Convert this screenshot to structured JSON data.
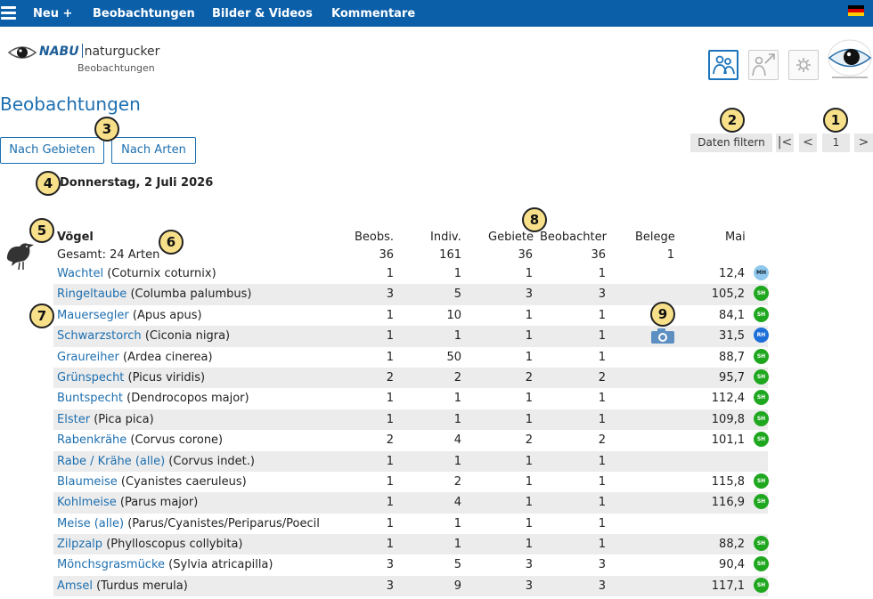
{
  "nav": {
    "items": [
      "Neu +",
      "Beobachtungen",
      "Bilder & Videos",
      "Kommentare"
    ]
  },
  "logo": {
    "brand": "NABU",
    "name": "naturgucker",
    "sub": "Beobachtungen"
  },
  "page": {
    "title": "Beobachtungen",
    "date": "Donnerstag, 2 Juli 2026"
  },
  "buttons": {
    "by_area": "Nach Gebieten",
    "by_species": "Nach Arten",
    "filter": "Daten filtern"
  },
  "pagination": {
    "first": "|<",
    "prev": "<",
    "page": "1",
    "next": ">"
  },
  "badges": [
    "1",
    "2",
    "3",
    "4",
    "5",
    "6",
    "7",
    "8",
    "9"
  ],
  "table": {
    "group": "Vögel",
    "total_label": "Gesamt: 24 Arten",
    "headers": {
      "beobs": "Beobs.",
      "indiv": "Indiv.",
      "gebiete": "Gebiete",
      "beobachter": "Beobachter",
      "belege": "Belege",
      "mai": "Mai"
    },
    "totals": {
      "beobs": "36",
      "indiv": "161",
      "gebiete": "36",
      "beobachter": "36",
      "belege": "1"
    },
    "rows": [
      {
        "name": "Wachtel",
        "latin": "(Coturnix coturnix)",
        "beobs": "1",
        "indiv": "1",
        "gebiete": "1",
        "beobachter": "1",
        "mai": "12,4",
        "tag": "MH",
        "tag_type": "mh"
      },
      {
        "name": "Ringeltaube",
        "latin": "(Columba palumbus)",
        "beobs": "3",
        "indiv": "5",
        "gebiete": "3",
        "beobachter": "3",
        "mai": "105,2",
        "tag": "SH",
        "tag_type": "sh"
      },
      {
        "name": "Mauersegler",
        "latin": "(Apus apus)",
        "beobs": "1",
        "indiv": "10",
        "gebiete": "1",
        "beobachter": "1",
        "mai": "84,1",
        "tag": "SH",
        "tag_type": "sh"
      },
      {
        "name": "Schwarzstorch",
        "latin": "(Ciconia nigra)",
        "beobs": "1",
        "indiv": "1",
        "gebiete": "1",
        "beobachter": "1",
        "mai": "31,5",
        "tag": "RH",
        "tag_type": "rh",
        "photo": true
      },
      {
        "name": "Graureiher",
        "latin": "(Ardea cinerea)",
        "beobs": "1",
        "indiv": "50",
        "gebiete": "1",
        "beobachter": "1",
        "mai": "88,7",
        "tag": "SH",
        "tag_type": "sh"
      },
      {
        "name": "Grünspecht",
        "latin": "(Picus viridis)",
        "beobs": "2",
        "indiv": "2",
        "gebiete": "2",
        "beobachter": "2",
        "mai": "95,7",
        "tag": "SH",
        "tag_type": "sh"
      },
      {
        "name": "Buntspecht",
        "latin": "(Dendrocopos major)",
        "beobs": "1",
        "indiv": "1",
        "gebiete": "1",
        "beobachter": "1",
        "mai": "112,4",
        "tag": "SH",
        "tag_type": "sh"
      },
      {
        "name": "Elster",
        "latin": "(Pica pica)",
        "beobs": "1",
        "indiv": "1",
        "gebiete": "1",
        "beobachter": "1",
        "mai": "109,8",
        "tag": "SH",
        "tag_type": "sh"
      },
      {
        "name": "Rabenkrähe",
        "latin": "(Corvus corone)",
        "beobs": "2",
        "indiv": "4",
        "gebiete": "2",
        "beobachter": "2",
        "mai": "101,1",
        "tag": "SH",
        "tag_type": "sh"
      },
      {
        "name": "Rabe / Krähe (alle)",
        "latin": "(Corvus indet.)",
        "beobs": "1",
        "indiv": "1",
        "gebiete": "1",
        "beobachter": "1",
        "mai": "",
        "tag": "",
        "tag_type": ""
      },
      {
        "name": "Blaumeise",
        "latin": "(Cyanistes caeruleus)",
        "beobs": "1",
        "indiv": "2",
        "gebiete": "1",
        "beobachter": "1",
        "mai": "115,8",
        "tag": "SH",
        "tag_type": "sh"
      },
      {
        "name": "Kohlmeise",
        "latin": "(Parus major)",
        "beobs": "1",
        "indiv": "4",
        "gebiete": "1",
        "beobachter": "1",
        "mai": "116,9",
        "tag": "SH",
        "tag_type": "sh"
      },
      {
        "name": "Meise (alle)",
        "latin": "(Parus/Cyanistes/Periparus/Poecil",
        "beobs": "1",
        "indiv": "1",
        "gebiete": "1",
        "beobachter": "1",
        "mai": "",
        "tag": "",
        "tag_type": ""
      },
      {
        "name": "Zilpzalp",
        "latin": "(Phylloscopus collybita)",
        "beobs": "1",
        "indiv": "1",
        "gebiete": "1",
        "beobachter": "1",
        "mai": "88,2",
        "tag": "SH",
        "tag_type": "sh"
      },
      {
        "name": "Mönchsgrasmücke",
        "latin": "(Sylvia atricapilla)",
        "beobs": "3",
        "indiv": "5",
        "gebiete": "3",
        "beobachter": "3",
        "mai": "90,4",
        "tag": "SH",
        "tag_type": "sh"
      },
      {
        "name": "Amsel",
        "latin": "(Turdus merula)",
        "beobs": "3",
        "indiv": "9",
        "gebiete": "3",
        "beobachter": "3",
        "mai": "117,1",
        "tag": "SH",
        "tag_type": "sh"
      }
    ]
  },
  "icons": {
    "menu": "hamburger-menu-icon",
    "flag": "german-flag-icon",
    "observers": "two-persons-icon",
    "export": "person-arrow-icon",
    "settings": "gear-icon",
    "bird": "bird-icon",
    "photo": "camera-icon"
  },
  "colors": {
    "topbar": "#0b5fa9",
    "link": "#1d6fb0",
    "tag_sh": "#1fa81f",
    "tag_mh": "#8fc8ec",
    "tag_rh": "#1c6fd8",
    "badge": "#f8e08a"
  }
}
